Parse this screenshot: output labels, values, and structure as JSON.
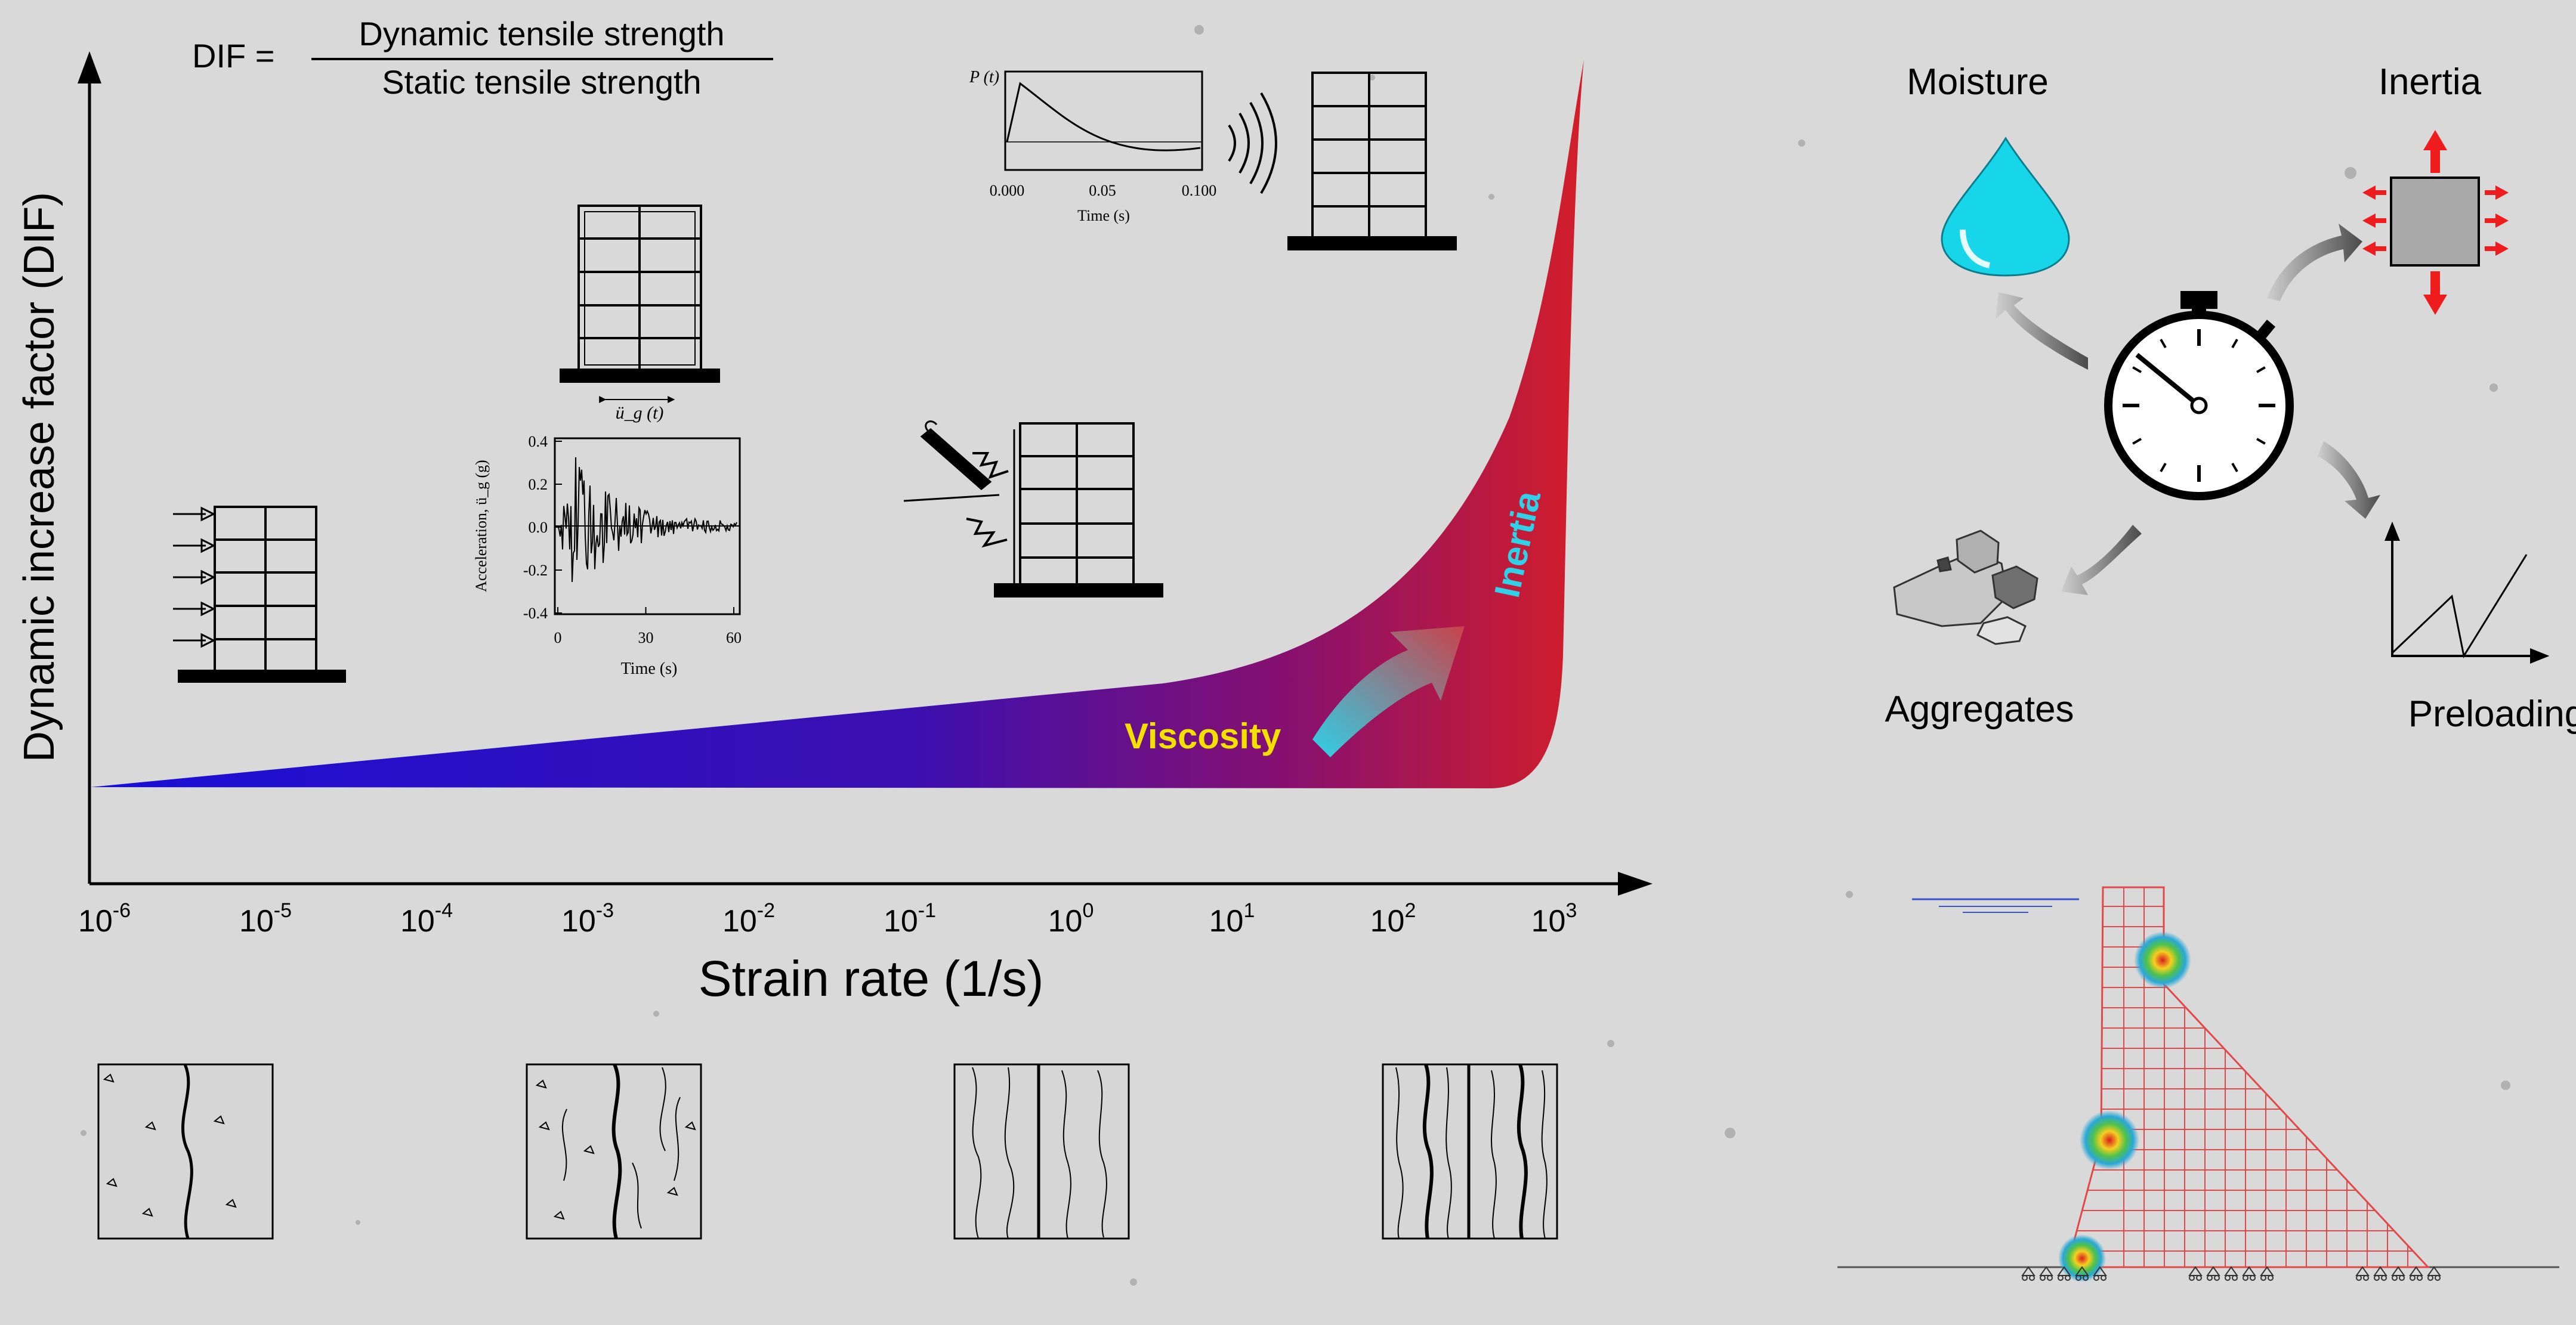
{
  "formula": {
    "lhs": "DIF =",
    "numerator": "Dynamic tensile strength",
    "denominator": "Static tensile strength"
  },
  "chart_data": {
    "type": "area",
    "xlabel": "Strain rate (1/s)",
    "ylabel": "Dynamic increase factor  (DIF)",
    "x_ticks": [
      {
        "base": "10",
        "exp": "-6"
      },
      {
        "base": "10",
        "exp": "-5"
      },
      {
        "base": "10",
        "exp": "-4"
      },
      {
        "base": "10",
        "exp": "-3"
      },
      {
        "base": "10",
        "exp": "-2"
      },
      {
        "base": "10",
        "exp": "-1"
      },
      {
        "base": "10",
        "exp": "0"
      },
      {
        "base": "10",
        "exp": "1"
      },
      {
        "base": "10",
        "exp": "2"
      },
      {
        "base": "10",
        "exp": "3"
      }
    ],
    "x_scale": "log",
    "xlim": [
      1e-06,
      1000.0
    ],
    "annotations": [
      "Viscosity",
      "Inertia"
    ],
    "colors": {
      "low": "#1a0fd6",
      "high": "#d21e2a",
      "viscosity": "#f2e000",
      "inertia": "#2fd0e8"
    }
  },
  "insets": {
    "blast": {
      "ylabel": "P (t)",
      "xlabel": "Time (s)",
      "ticks": [
        "0.000",
        "0.05",
        "0.100"
      ]
    },
    "ground": {
      "label": "ü_g (t)",
      "ylabel": "Acceleration, ü_g (g)",
      "xlabel": "Time (s)",
      "yticks": [
        "0.4",
        "0.2",
        "0.0",
        "-0.2",
        "-0.4"
      ],
      "xticks": [
        "0",
        "30",
        "60"
      ]
    }
  },
  "factors": {
    "moisture": "Moisture",
    "inertia": "Inertia",
    "aggregates": "Aggregates",
    "preloading": "Preloading"
  }
}
